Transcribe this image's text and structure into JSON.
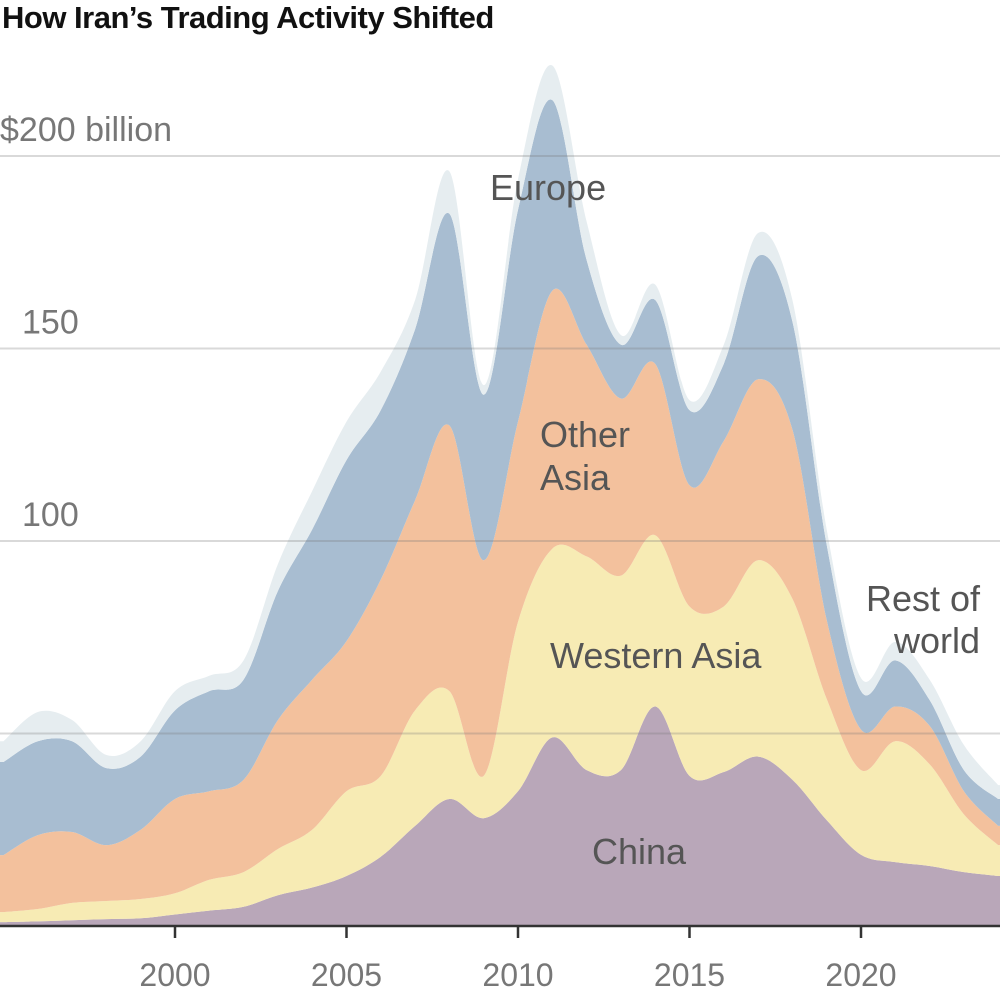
{
  "title": "How Iran’s Trading Activity Shifted",
  "chart_data": {
    "type": "area",
    "stacked": true,
    "title": "How Iran’s Trading Activity Shifted",
    "xlabel": "",
    "ylabel": "",
    "x": [
      1995,
      1996,
      1997,
      1998,
      1999,
      2000,
      2001,
      2002,
      2003,
      2004,
      2005,
      2006,
      2007,
      2008,
      2009,
      2010,
      2011,
      2012,
      2013,
      2014,
      2015,
      2016,
      2017,
      2018,
      2019,
      2020,
      2021,
      2022,
      2023,
      2024
    ],
    "xlim": [
      1995,
      2024
    ],
    "ylim": [
      0,
      225
    ],
    "x_ticks": [
      "2000",
      "2005",
      "2010",
      "2015",
      "2020"
    ],
    "y_ticks": [
      {
        "value": 200,
        "label": "$200 billion"
      },
      {
        "value": 150,
        "label": "150"
      },
      {
        "value": 100,
        "label": "100"
      },
      {
        "value": 50,
        "label": ""
      }
    ],
    "grid": true,
    "legend": "none (labels inside areas)",
    "series": [
      {
        "name": "China",
        "color": "#b9a7b9",
        "values": [
          1,
          1.2,
          1.5,
          1.8,
          2,
          3,
          4,
          5,
          8,
          10,
          13,
          18,
          26,
          33,
          28,
          35,
          49,
          40.5,
          40.5,
          57,
          39,
          40,
          44,
          38,
          27.5,
          18.5,
          16.6,
          15.6,
          14,
          13
        ]
      },
      {
        "name": "Western Asia",
        "color": "#f7ebb4",
        "values": [
          2.6,
          3.2,
          4.5,
          4.7,
          5,
          5.5,
          8,
          9,
          12,
          15,
          22,
          21,
          30,
          28,
          11,
          44,
          49,
          55.5,
          50.5,
          44.5,
          44,
          43,
          51,
          47,
          31.5,
          22,
          31.4,
          26.4,
          15,
          8
        ]
      },
      {
        "name": "Other Asia",
        "color": "#f3c19d",
        "values": [
          14.8,
          19.2,
          18.4,
          14.5,
          18,
          24.5,
          23,
          24,
          33.5,
          39,
          39,
          51,
          54.6,
          69,
          56,
          52,
          67,
          55,
          46,
          44.5,
          31.5,
          43,
          47,
          44,
          20.5,
          10.5,
          9,
          10,
          6,
          5
        ]
      },
      {
        "name": "Europe",
        "color": "#a8bdd1",
        "values": [
          24.2,
          24.4,
          23.6,
          20,
          19,
          23,
          26,
          26,
          33.5,
          39,
          47,
          44,
          44.4,
          55,
          43,
          55,
          49.5,
          22,
          14,
          16.6,
          19.5,
          20,
          32,
          28,
          19.5,
          10,
          12,
          6.7,
          5.5,
          7
        ]
      },
      {
        "name": "Rest of world",
        "color": "#e6edf0",
        "values": [
          5.4,
          7.6,
          5.5,
          3.4,
          4,
          5,
          4,
          5,
          7,
          10,
          10,
          10,
          7.6,
          11,
          2.5,
          8,
          9,
          10,
          2.5,
          4,
          2.6,
          5,
          6,
          5.6,
          4,
          3.4,
          4.8,
          5.3,
          6.5,
          3.6
        ]
      }
    ],
    "area_labels": {
      "europe": "Europe",
      "other_asia_1": "Other",
      "other_asia_2": "Asia",
      "western_asia": "Western Asia",
      "china": "China",
      "rest_1": "Rest of",
      "rest_2": "world"
    }
  }
}
